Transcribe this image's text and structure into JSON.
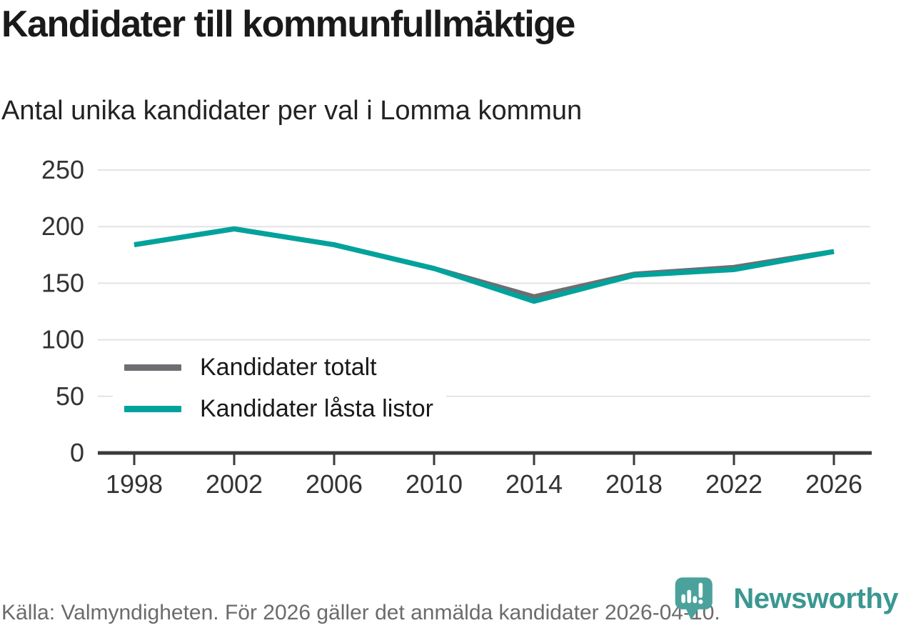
{
  "header": {
    "title": "Kandidater till kommunfullmäktige",
    "subtitle": "Antal unika kandidater per val i Lomma kommun"
  },
  "chart_data": {
    "type": "line",
    "title": "Kandidater till kommunfullmäktige",
    "subtitle": "Antal unika kandidater per val i Lomma kommun",
    "x": [
      1998,
      2002,
      2006,
      2010,
      2014,
      2018,
      2022,
      2026
    ],
    "series": [
      {
        "name": "Kandidater totalt",
        "color": "#6e6e72",
        "values": [
          184,
          198,
          184,
          163,
          138,
          158,
          164,
          178
        ]
      },
      {
        "name": "Kandidater låsta listor",
        "color": "#00a39c",
        "values": [
          184,
          198,
          184,
          163,
          134,
          157,
          162,
          178
        ]
      }
    ],
    "xlabel": "",
    "ylabel": "",
    "ylim": [
      0,
      250
    ],
    "yticks": [
      0,
      50,
      100,
      150,
      200,
      250
    ],
    "grid": "horizontal",
    "legend_position": "inside-left-middle"
  },
  "footer": {
    "source": "Källa: Valmyndigheten. För 2026 gäller det anmälda kandidater 2026-04-10."
  },
  "logo": {
    "brand": "Newsworthy",
    "icon": "newsworthy-pin-barchart-icon"
  },
  "colors": {
    "series_total": "#6e6e72",
    "series_locked": "#00a39c",
    "gridline": "#e3e3e3",
    "axis": "#3a3a3a",
    "tick_label": "#333333",
    "footer_text": "#6b6b6b",
    "brand_teal": "#3a9791",
    "brand_pin": "#4ba29c"
  }
}
